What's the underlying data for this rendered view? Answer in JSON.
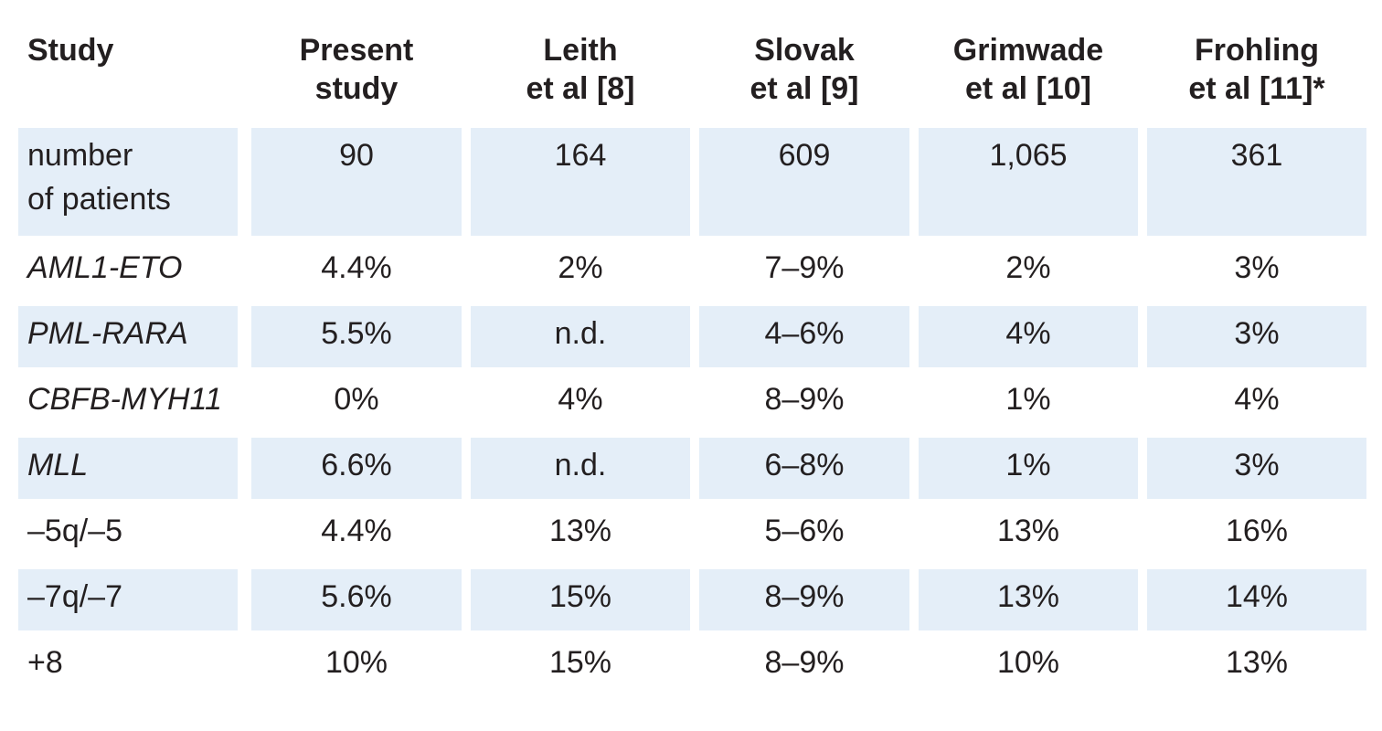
{
  "table": {
    "header": {
      "study": "Study",
      "columns": [
        {
          "line1": "Present",
          "line2": "study"
        },
        {
          "line1": "Leith",
          "line2": "et al [8]"
        },
        {
          "line1": "Slovak",
          "line2": "et al [9]"
        },
        {
          "line1": "Grimwade",
          "line2": "et al [10]"
        },
        {
          "line1": "Frohling",
          "line2": "et al [11]*"
        }
      ]
    },
    "rows": [
      {
        "label_line1": "number",
        "label_line2": "of patients",
        "italic": false,
        "shaded": true,
        "values": [
          "90",
          "164",
          "609",
          "1,065",
          "361"
        ]
      },
      {
        "label_line1": "AML1-ETO",
        "italic": true,
        "shaded": false,
        "values": [
          "4.4%",
          "2%",
          "7–9%",
          "2%",
          "3%"
        ]
      },
      {
        "label_line1": "PML-RARA",
        "italic": true,
        "shaded": true,
        "values": [
          "5.5%",
          "n.d.",
          "4–6%",
          "4%",
          "3%"
        ]
      },
      {
        "label_line1": "CBFB-MYH11",
        "italic": true,
        "shaded": false,
        "values": [
          "0%",
          "4%",
          "8–9%",
          "1%",
          "4%"
        ]
      },
      {
        "label_line1": "MLL",
        "italic": true,
        "shaded": true,
        "values": [
          "6.6%",
          "n.d.",
          "6–8%",
          "1%",
          "3%"
        ]
      },
      {
        "label_line1": "–5q/–5",
        "italic": false,
        "shaded": false,
        "values": [
          "4.4%",
          "13%",
          "5–6%",
          "13%",
          "16%"
        ]
      },
      {
        "label_line1": "–7q/–7",
        "italic": false,
        "shaded": true,
        "values": [
          "5.6%",
          "15%",
          "8–9%",
          "13%",
          "14%"
        ]
      },
      {
        "label_line1": "+8",
        "italic": false,
        "shaded": false,
        "values": [
          "10%",
          "15%",
          "8–9%",
          "10%",
          "13%"
        ]
      }
    ]
  },
  "colors": {
    "shade": "#e4eef8",
    "text": "#231f20"
  }
}
